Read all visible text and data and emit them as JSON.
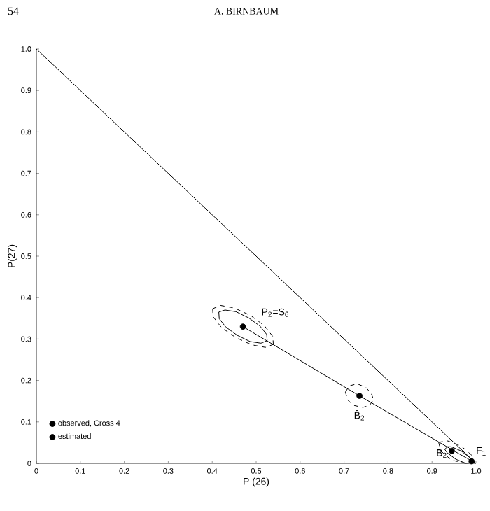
{
  "chart_data": {
    "type": "line",
    "title": "A. BIRNBAUM",
    "xlabel": "P (26)",
    "ylabel": "P(27)",
    "annotations": [
      "54",
      {
        "text": "P$_{2}$=S$_{6}$",
        "x": 0.47,
        "y": 0.33
      },
      {
        "text": "B̂$_{2}$",
        "x": 0.735,
        "y": 0.163
      },
      {
        "text": "B$_{2}$",
        "x": 0.945,
        "y": 0.03
      },
      {
        "text": "F$_{1}$",
        "x": 0.99,
        "y": 0.005
      }
    ],
    "xlim": [
      0,
      1.0
    ],
    "ylim": [
      0,
      1.0
    ],
    "xticks": [
      0,
      0.1,
      0.2,
      0.3,
      0.4,
      0.5,
      0.6,
      0.7,
      0.8,
      0.9,
      {
        "value": 1.0,
        "label": "1.0"
      }
    ],
    "yticks": [
      0,
      0.1,
      0.2,
      0.3,
      0.4,
      0.5,
      0.6,
      0.7,
      0.8,
      0.9,
      {
        "value": 1.0,
        "label": "1.0"
      }
    ],
    "legend": "bottom left",
    "series": [
      {
        "color": "#000000",
        "line_style": "solid",
        "x": [
          0,
          1.0
        ],
        "values": [
          1.0,
          0
        ]
      },
      {
        "color": "#000000",
        "line_style": "solid",
        "x": [
          0.47,
          0.735,
          0.95,
          1.0
        ],
        "values": [
          0.33,
          0.163,
          0.03,
          0
        ]
      },
      {
        "color": "#000000",
        "line_style": "solid",
        "x": [
          0.415,
          0.429,
          0.454,
          0.483,
          0.509,
          0.524,
          0.525
        ],
        "values": [
          0.365,
          0.37,
          0.366,
          0.351,
          0.331,
          0.311,
          0.296
        ]
      },
      {
        "color": "#000000",
        "line_style": "solid",
        "x": [
          0.415,
          0.416,
          0.431,
          0.457,
          0.486,
          0.511,
          0.525
        ],
        "values": [
          0.365,
          0.349,
          0.329,
          0.309,
          0.294,
          0.29,
          0.296
        ]
      },
      {
        "color": "#000000",
        "line_style": "dashed",
        "x": [
          0.401,
          0.419,
          0.45,
          0.487,
          0.519,
          0.538,
          0.539
        ],
        "values": [
          0.373,
          0.381,
          0.375,
          0.357,
          0.332,
          0.306,
          0.287
        ]
      },
      {
        "color": "#000000",
        "line_style": "dashed",
        "x": [
          0.401,
          0.402,
          0.421,
          0.453,
          0.49,
          0.521,
          0.539
        ],
        "values": [
          0.373,
          0.354,
          0.328,
          0.304,
          0.286,
          0.28,
          0.287
        ]
      },
      {
        "color": "#000000",
        "line_style": "dashed",
        "x": [
          0.703,
          0.712,
          0.73,
          0.75,
          0.762,
          0.767
        ],
        "values": [
          0.172,
          0.187,
          0.192,
          0.183,
          0.168,
          0.154
        ]
      },
      {
        "color": "#000000",
        "line_style": "dashed",
        "x": [
          0.703,
          0.708,
          0.722,
          0.742,
          0.758,
          0.767
        ],
        "values": [
          0.172,
          0.153,
          0.14,
          0.135,
          0.14,
          0.154
        ]
      },
      {
        "color": "#000000",
        "line_style": "solid",
        "x": [
          0.929,
          0.935,
          0.944,
          0.966,
          0.986,
          0.99
        ],
        "values": [
          0.034,
          0.04,
          0.04,
          0.03,
          0.014,
          0.001
        ]
      },
      {
        "color": "#000000",
        "line_style": "solid",
        "x": [
          0.929,
          0.934,
          0.954,
          0.977,
          0.99
        ],
        "values": [
          0.034,
          0.026,
          0.01,
          0.0,
          0.001
        ]
      },
      {
        "color": "#000000",
        "line_style": "dashed",
        "x": [
          0.915,
          0.936,
          0.966,
          0.99,
          0.993
        ],
        "values": [
          0.051,
          0.054,
          0.042,
          0.02,
          0.001
        ]
      },
      {
        "color": "#000000",
        "line_style": "dashed",
        "x": [
          0.915,
          0.92,
          0.944,
          0.975,
          0.993
        ],
        "values": [
          0.051,
          0.03,
          0.008,
          0.0,
          0.001
        ]
      },
      {
        "type": "scatter",
        "name": "observed, Cross 4",
        "color": "#000000",
        "x": [
          0.47,
          0.945
        ],
        "values": [
          0.33,
          0.03
        ]
      },
      {
        "type": "scatter",
        "name": "estimated",
        "color": "#000000",
        "x": [
          0.735,
          0.99
        ],
        "values": [
          0.163,
          0.005
        ]
      }
    ]
  }
}
